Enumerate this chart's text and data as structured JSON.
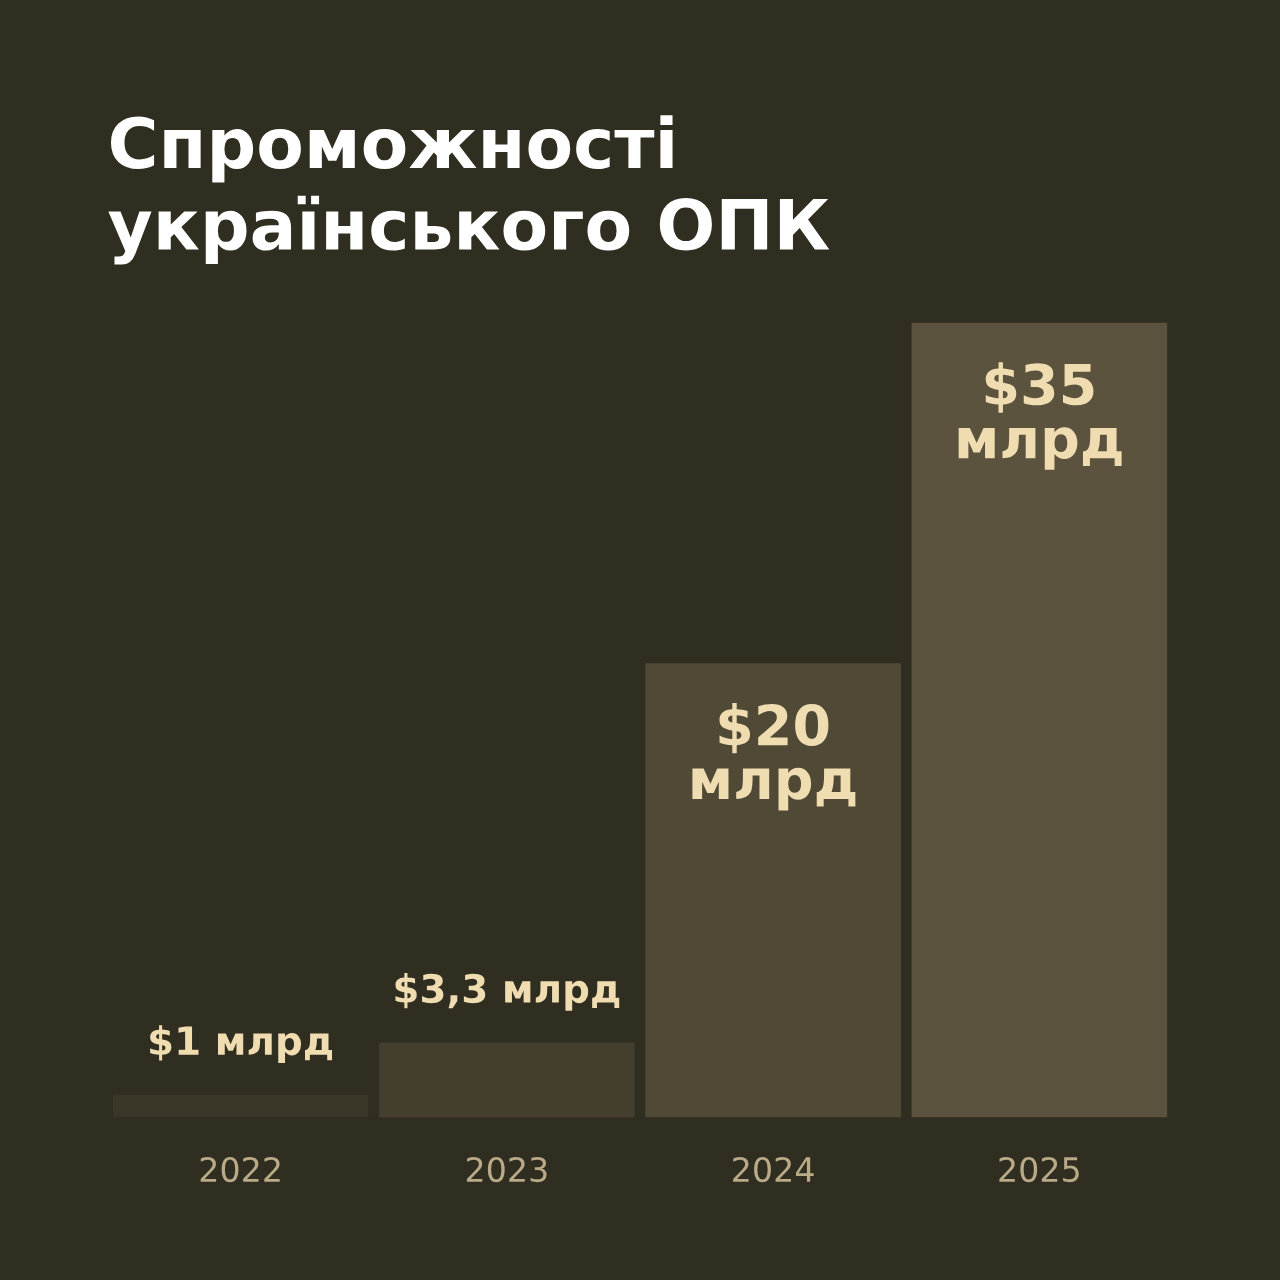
{
  "chart_data": {
    "type": "bar",
    "title": "Спроможності\nукраїнського ОПК",
    "categories": [
      "2022",
      "2023",
      "2024",
      "2025"
    ],
    "values": [
      1,
      3.3,
      20,
      35
    ],
    "colors": [
      "#3b3728",
      "#433e2e",
      "#4f4936",
      "#5b533e"
    ],
    "value_labels": [
      "$1 млрд",
      "$3,3 млрд",
      "$20\nмлрд",
      "$35\nмлрд"
    ],
    "grid": false,
    "legend": false
  }
}
